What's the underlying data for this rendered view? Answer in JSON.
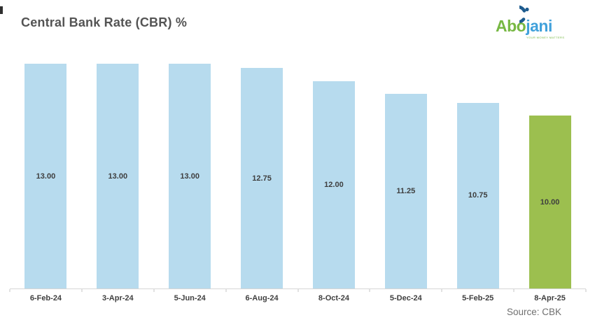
{
  "header": {
    "title": "Central Bank Rate (CBR) %",
    "logo": {
      "part1": "Abo",
      "part2": "jani",
      "tagline": "YOUR MONEY MATTERS",
      "green": "#77B843",
      "blue": "#41A1DB",
      "icon": "crescent-swoosh-icon",
      "icon_color": "#1E5C8F"
    }
  },
  "footer": {
    "source": "Source: CBK"
  },
  "chart_data": {
    "type": "bar",
    "title": "Central Bank Rate (CBR) %",
    "categories": [
      "6-Feb-24",
      "3-Apr-24",
      "5-Jun-24",
      "6-Aug-24",
      "8-Oct-24",
      "5-Dec-24",
      "5-Feb-25",
      "8-Apr-25"
    ],
    "values": [
      13.0,
      13.0,
      13.0,
      12.75,
      12.0,
      11.25,
      10.75,
      10.0
    ],
    "value_labels": [
      "13.00",
      "13.00",
      "13.00",
      "12.75",
      "12.00",
      "11.25",
      "10.75",
      "10.00"
    ],
    "xlabel": "",
    "ylabel": "",
    "ylim": [
      0,
      13
    ],
    "grid": false,
    "legend": false,
    "label_position": "inside-center",
    "bar_color": "#B7DBEE",
    "highlight_color": "#9CBF4F",
    "highlight_index": 7,
    "axis_color": "#D6D6D6",
    "source": "Source: CBK"
  }
}
